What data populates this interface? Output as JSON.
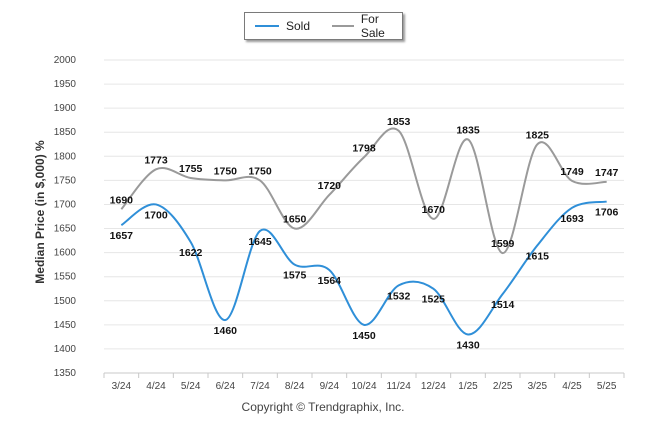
{
  "chart_data": {
    "type": "line",
    "ylabel": "Median Price (in $,000) %",
    "xlabel": "",
    "categories": [
      "3/24",
      "4/24",
      "5/24",
      "6/24",
      "7/24",
      "8/24",
      "9/24",
      "10/24",
      "11/24",
      "12/24",
      "1/25",
      "2/25",
      "3/25",
      "4/25",
      "5/25"
    ],
    "ylim": [
      1350,
      2000
    ],
    "yticks": [
      1350,
      1400,
      1450,
      1500,
      1550,
      1600,
      1650,
      1700,
      1750,
      1800,
      1850,
      1900,
      1950,
      2000
    ],
    "grid": true,
    "legend_position": "top",
    "series": [
      {
        "name": "Sold",
        "color": "#2f8fd8",
        "values": [
          1657,
          1700,
          1622,
          1460,
          1645,
          1575,
          1564,
          1450,
          1532,
          1525,
          1430,
          1514,
          1615,
          1693,
          1706
        ]
      },
      {
        "name": "For Sale",
        "color": "#9a9a9a",
        "values": [
          1690,
          1773,
          1755,
          1750,
          1750,
          1650,
          1720,
          1798,
          1853,
          1670,
          1835,
          1599,
          1825,
          1749,
          1747
        ]
      }
    ]
  },
  "footer": "Copyright © Trendgraphix, Inc."
}
